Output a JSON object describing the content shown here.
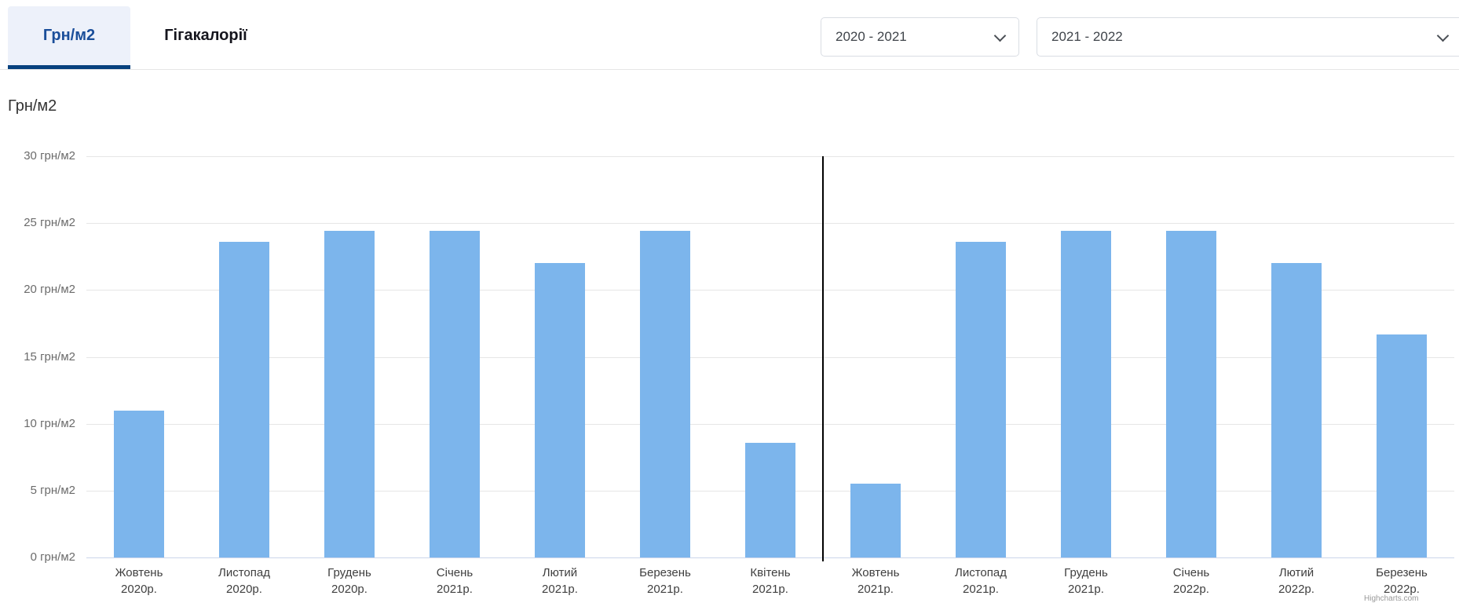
{
  "tabs": [
    {
      "label": "Грн/м2",
      "active": true
    },
    {
      "label": "Гігакалорії",
      "active": false
    }
  ],
  "filters": {
    "season_from": "2020 - 2021",
    "season_to": "2021 - 2022"
  },
  "credit": "Highcharts.com",
  "colors": {
    "accent_blue": "#1a4e9a",
    "tab_underline": "#07417e",
    "tab_active_bg": "#edf1fa",
    "bar": "#7cb5ec",
    "gridline": "#e6e6e6",
    "axis_line": "#ccd6eb",
    "divider": "#000000"
  },
  "chart_data": {
    "type": "bar",
    "title": "Грн/м2",
    "categories": [
      {
        "month": "Жовтень",
        "year": "2020р."
      },
      {
        "month": "Листопад",
        "year": "2020р."
      },
      {
        "month": "Грудень",
        "year": "2020р."
      },
      {
        "month": "Січень",
        "year": "2021р."
      },
      {
        "month": "Лютий",
        "year": "2021р."
      },
      {
        "month": "Березень",
        "year": "2021р."
      },
      {
        "month": "Квітень",
        "year": "2021р."
      },
      {
        "month": "Жовтень",
        "year": "2021р."
      },
      {
        "month": "Листопад",
        "year": "2021р."
      },
      {
        "month": "Грудень",
        "year": "2021р."
      },
      {
        "month": "Січень",
        "year": "2022р."
      },
      {
        "month": "Лютий",
        "year": "2022р."
      },
      {
        "month": "Березень",
        "year": "2022р."
      }
    ],
    "values": [
      11,
      23.6,
      24.4,
      24.4,
      22,
      24.4,
      8.6,
      5.5,
      23.6,
      24.4,
      24.4,
      22,
      16.7
    ],
    "ylim": [
      0,
      30
    ],
    "yticks": [
      0,
      5,
      10,
      15,
      20,
      25,
      30
    ],
    "ytick_suffix": " грн/м2",
    "grid": true,
    "legend": "none",
    "divider_after_index": 6,
    "bar_color": "#7cb5ec"
  }
}
